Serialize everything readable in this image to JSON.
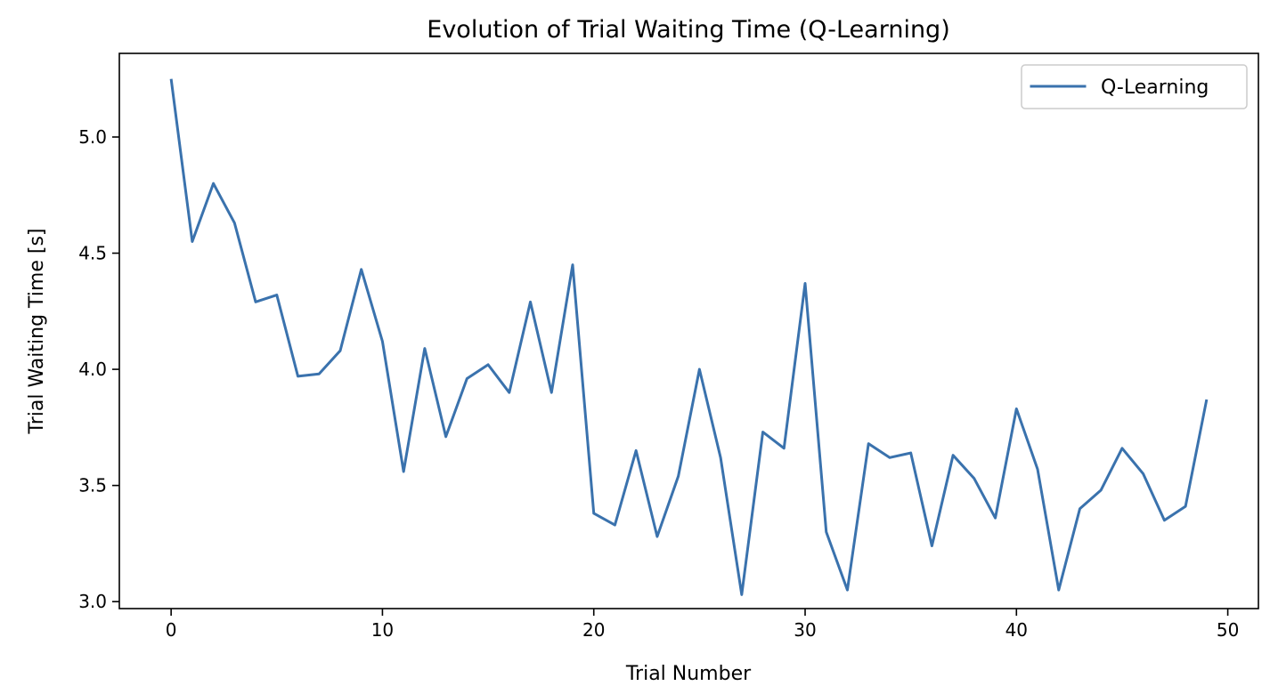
{
  "chart_data": {
    "type": "line",
    "title": "Evolution of Trial Waiting Time (Q-Learning)",
    "xlabel": "Trial Number",
    "ylabel": "Trial Waiting Time [s]",
    "xlim": [
      -2.45,
      51.45
    ],
    "ylim": [
      2.97,
      5.36
    ],
    "xticks": [
      0,
      10,
      20,
      30,
      40,
      50
    ],
    "yticks": [
      3.0,
      3.5,
      4.0,
      4.5,
      5.0
    ],
    "xtick_labels": [
      "0",
      "10",
      "20",
      "30",
      "40",
      "50"
    ],
    "ytick_labels": [
      "3.0",
      "3.5",
      "4.0",
      "4.5",
      "5.0"
    ],
    "grid": false,
    "legend_position": "top-right",
    "series": [
      {
        "name": "Q-Learning",
        "color": "#3a72ad",
        "x": [
          0,
          1,
          2,
          3,
          4,
          5,
          6,
          7,
          8,
          9,
          10,
          11,
          12,
          13,
          14,
          15,
          16,
          17,
          18,
          19,
          20,
          21,
          22,
          23,
          24,
          25,
          26,
          27,
          28,
          29,
          30,
          31,
          32,
          33,
          34,
          35,
          36,
          37,
          38,
          39,
          40,
          41,
          42,
          43,
          44,
          45,
          46,
          47,
          48,
          49
        ],
        "y": [
          5.25,
          4.55,
          4.8,
          4.63,
          4.29,
          4.32,
          3.97,
          3.98,
          4.08,
          4.43,
          4.12,
          3.56,
          4.09,
          3.71,
          3.96,
          4.02,
          3.9,
          4.29,
          3.9,
          4.45,
          3.38,
          3.33,
          3.65,
          3.28,
          3.54,
          4.0,
          3.62,
          3.03,
          3.73,
          3.66,
          4.37,
          3.3,
          3.05,
          3.68,
          3.62,
          3.64,
          3.24,
          3.63,
          3.53,
          3.36,
          3.83,
          3.57,
          3.05,
          3.4,
          3.48,
          3.66,
          3.55,
          3.35,
          3.41,
          3.87
        ]
      }
    ]
  }
}
